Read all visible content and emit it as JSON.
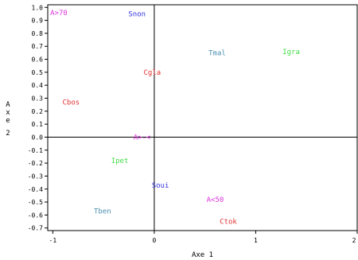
{
  "chart_data": {
    "type": "scatter",
    "title": "",
    "xlabel": "Axe 1",
    "ylabel": "Axe 2",
    "xlim": [
      -1.05,
      2.0
    ],
    "ylim": [
      -0.72,
      1.02
    ],
    "xticks": [
      -1,
      0,
      1,
      2
    ],
    "xtick_labels": [
      "-1",
      "0",
      "1",
      "2"
    ],
    "yticks": [
      1.0,
      0.9,
      0.8,
      0.7,
      0.6,
      0.5,
      0.4,
      0.3,
      0.2,
      0.1,
      0.0,
      -0.1,
      -0.2,
      -0.3,
      -0.4,
      -0.5,
      -0.6,
      -0.7
    ],
    "ytick_labels": [
      "1.0",
      "0.9",
      "0.8",
      "0.7",
      "0.6",
      "0.5",
      "0.4",
      "0.3",
      "0.2",
      "0.1",
      "0.0",
      "-0.1",
      "-0.2",
      "-0.3",
      "-0.4",
      "-0.5",
      "-0.6",
      "-0.7"
    ],
    "reference_lines": {
      "x": 0,
      "y": 0
    },
    "grid": false,
    "points": [
      {
        "label": "A>70",
        "x": -0.94,
        "y": 0.96,
        "color": "#dd33dd"
      },
      {
        "label": "Snon",
        "x": -0.17,
        "y": 0.95,
        "color": "#3333dd"
      },
      {
        "label": "Tmal",
        "x": 0.62,
        "y": 0.65,
        "color": "#4a8fb0"
      },
      {
        "label": "Igra",
        "x": 1.35,
        "y": 0.66,
        "color": "#44dd44"
      },
      {
        "label": "Cgla",
        "x": -0.02,
        "y": 0.5,
        "color": "#e03030"
      },
      {
        "label": "Cbos",
        "x": -0.82,
        "y": 0.27,
        "color": "#e03030"
      },
      {
        "label": "A>-<",
        "x": -0.12,
        "y": 0.0,
        "color": "#dd33dd"
      },
      {
        "label": "Ipet",
        "x": -0.34,
        "y": -0.18,
        "color": "#44dd44"
      },
      {
        "label": "Soui",
        "x": 0.06,
        "y": -0.37,
        "color": "#3333dd"
      },
      {
        "label": "A<50",
        "x": 0.6,
        "y": -0.48,
        "color": "#dd33dd"
      },
      {
        "label": "Tben",
        "x": -0.51,
        "y": -0.57,
        "color": "#4a8fb0"
      },
      {
        "label": "Ctok",
        "x": 0.73,
        "y": -0.65,
        "color": "#e03030"
      }
    ]
  }
}
